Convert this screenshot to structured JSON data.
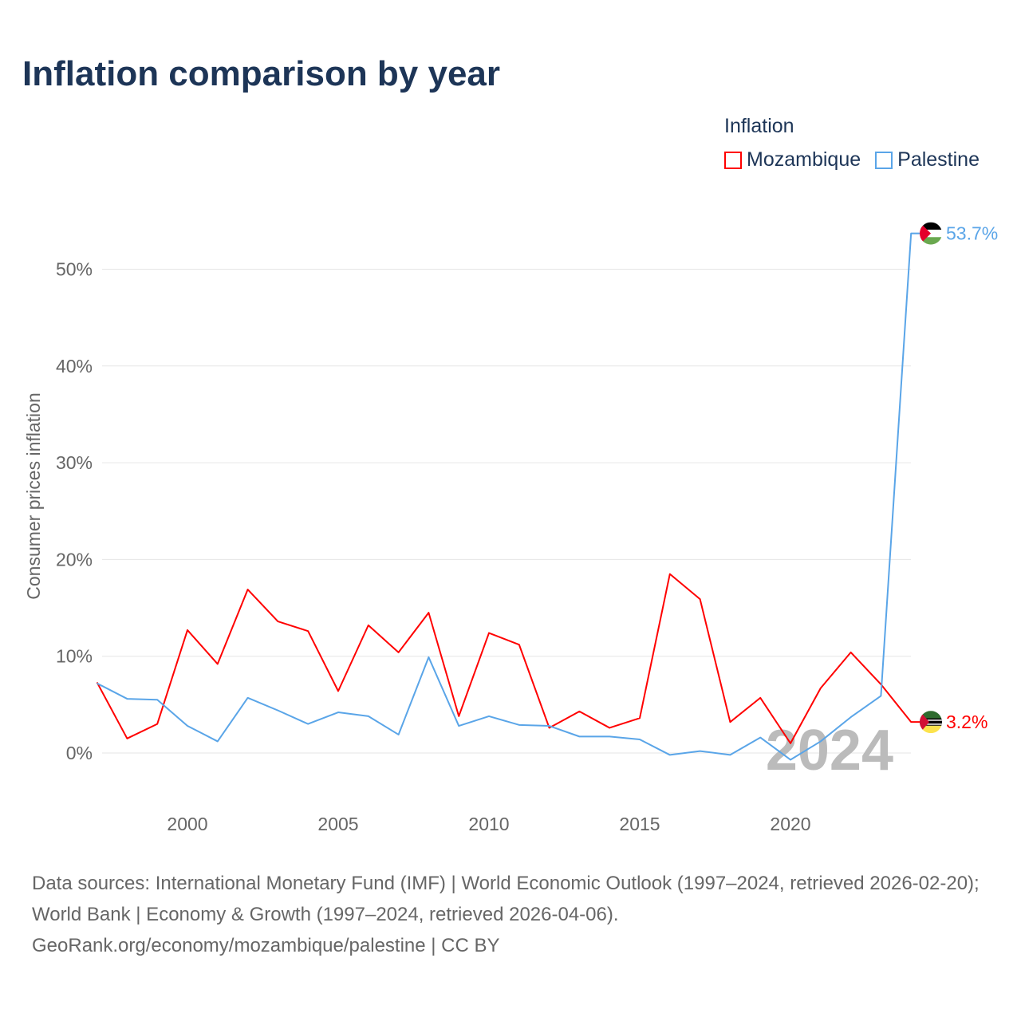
{
  "title": "Inflation comparison by year",
  "legend": {
    "title": "Inflation",
    "items": [
      {
        "name": "Mozambique",
        "color": "#ff0000"
      },
      {
        "name": "Palestine",
        "color": "#5aa5e8"
      }
    ]
  },
  "watermark_year": "2024",
  "chart_data": {
    "type": "line",
    "title": "Inflation comparison by year",
    "xlabel": "",
    "ylabel": "Consumer prices inflation",
    "x": [
      1997,
      1998,
      1999,
      2000,
      2001,
      2002,
      2003,
      2004,
      2005,
      2006,
      2007,
      2008,
      2009,
      2010,
      2011,
      2012,
      2013,
      2014,
      2015,
      2016,
      2017,
      2018,
      2019,
      2020,
      2021,
      2022,
      2023,
      2024
    ],
    "xticks": [
      2000,
      2005,
      2010,
      2015,
      2020
    ],
    "xtick_labels": [
      "2000",
      "2005",
      "2010",
      "2015",
      "2020"
    ],
    "yticks": [
      0,
      10,
      20,
      30,
      40,
      50
    ],
    "ytick_labels": [
      "0%",
      "10%",
      "20%",
      "30%",
      "40%",
      "50%"
    ],
    "ylim": [
      -5,
      55
    ],
    "grid": true,
    "legend_position": "top-right",
    "series": [
      {
        "name": "Mozambique",
        "color": "#ff0000",
        "end_label": "3.2%",
        "values": [
          7.3,
          1.5,
          3.0,
          12.7,
          9.2,
          16.9,
          13.6,
          12.6,
          6.4,
          13.2,
          10.4,
          14.5,
          3.8,
          12.4,
          11.2,
          2.6,
          4.3,
          2.6,
          3.6,
          18.5,
          15.9,
          3.2,
          5.7,
          1.0,
          6.7,
          10.4,
          7.1,
          3.2
        ]
      },
      {
        "name": "Palestine",
        "color": "#5aa5e8",
        "end_label": "53.7%",
        "values": [
          7.2,
          5.6,
          5.5,
          2.8,
          1.2,
          5.7,
          4.4,
          3.0,
          4.2,
          3.8,
          1.9,
          9.9,
          2.8,
          3.8,
          2.9,
          2.8,
          1.7,
          1.7,
          1.4,
          -0.2,
          0.2,
          -0.2,
          1.6,
          -0.7,
          1.2,
          3.7,
          5.9,
          53.7
        ]
      }
    ]
  },
  "footer": {
    "sources": "Data sources: International Monetary Fund (IMF) | World Economic Outlook (1997–2024, retrieved 2026-02-20); World Bank | Economy & Growth (1997–2024, retrieved 2026-04-06).",
    "link": "GeoRank.org/economy/mozambique/palestine | CC BY"
  }
}
